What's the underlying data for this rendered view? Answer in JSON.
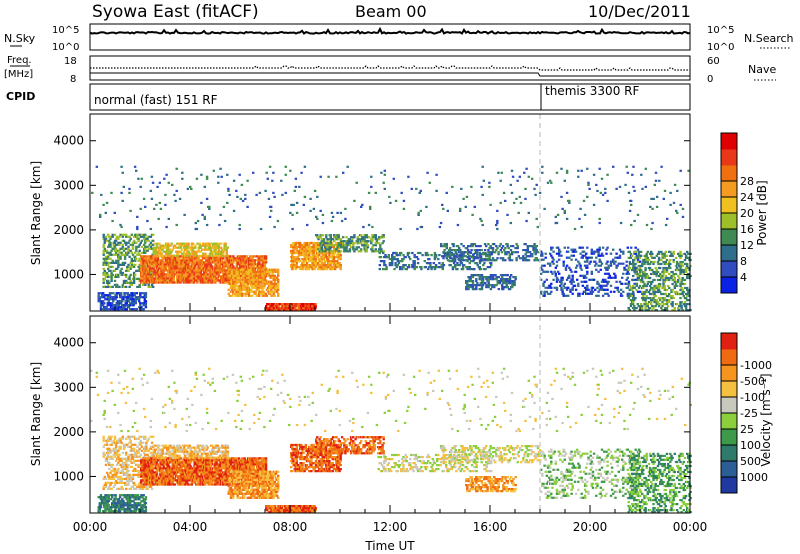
{
  "header": {
    "title": "Syowa East (fitACF)",
    "beam": "Beam 00",
    "date": "10/Dec/2011"
  },
  "strip1": {
    "left_label": "N.Sky",
    "right_label": "N.Search",
    "left_ticks": [
      "10^5",
      "10^0"
    ],
    "right_ticks": [
      "10^5",
      "10^0"
    ]
  },
  "strip2": {
    "left_label_1": "Freq.",
    "left_label_2": "[MHz]",
    "left_ticks": [
      "18",
      "8"
    ],
    "right_label": "Nave",
    "right_ticks": [
      "60",
      "0"
    ]
  },
  "strip3": {
    "left_label": "CPID",
    "mode_1": "normal (fast) 151 RF",
    "mode_2": "themis 3300 RF"
  },
  "chart_data": [
    {
      "type": "heatmap",
      "panel": "power",
      "ylabel": "Slant Range [km]",
      "xlabel": "",
      "yticks": [
        1000,
        2000,
        3000,
        4000
      ],
      "ylim": [
        180,
        4600
      ],
      "xlim": [
        0,
        24
      ],
      "colorbar": {
        "label": "Power [dB]",
        "ticks": [
          "4",
          "8",
          "12",
          "16",
          "20",
          "24",
          "28"
        ],
        "colors": [
          "#0a22e6",
          "#2f4dbf",
          "#2f6e8a",
          "#3f8a52",
          "#9ebf28",
          "#f0c020",
          "#f59b22",
          "#f07010",
          "#e83818",
          "#e00000"
        ]
      }
    },
    {
      "type": "heatmap",
      "panel": "velocity",
      "ylabel": "Slant Range [km]",
      "xlabel": "Time UT",
      "xticks": [
        "00:00",
        "04:00",
        "08:00",
        "12:00",
        "16:00",
        "20:00",
        "00:00"
      ],
      "yticks": [
        1000,
        2000,
        3000,
        4000
      ],
      "ylim": [
        180,
        4600
      ],
      "xlim": [
        0,
        24
      ],
      "colorbar": {
        "label": "Velocity [m s⁻¹]",
        "ticks": [
          "1000",
          "500",
          "100",
          "25",
          "-25",
          "-100",
          "-500",
          "-1000"
        ],
        "colors": [
          "#1e3aa0",
          "#2a5e95",
          "#2f7a6a",
          "#3d9a4a",
          "#8ccf3c",
          "#c8c8bc",
          "#f5c040",
          "#f59520",
          "#ef6a10",
          "#e02010"
        ]
      }
    }
  ]
}
